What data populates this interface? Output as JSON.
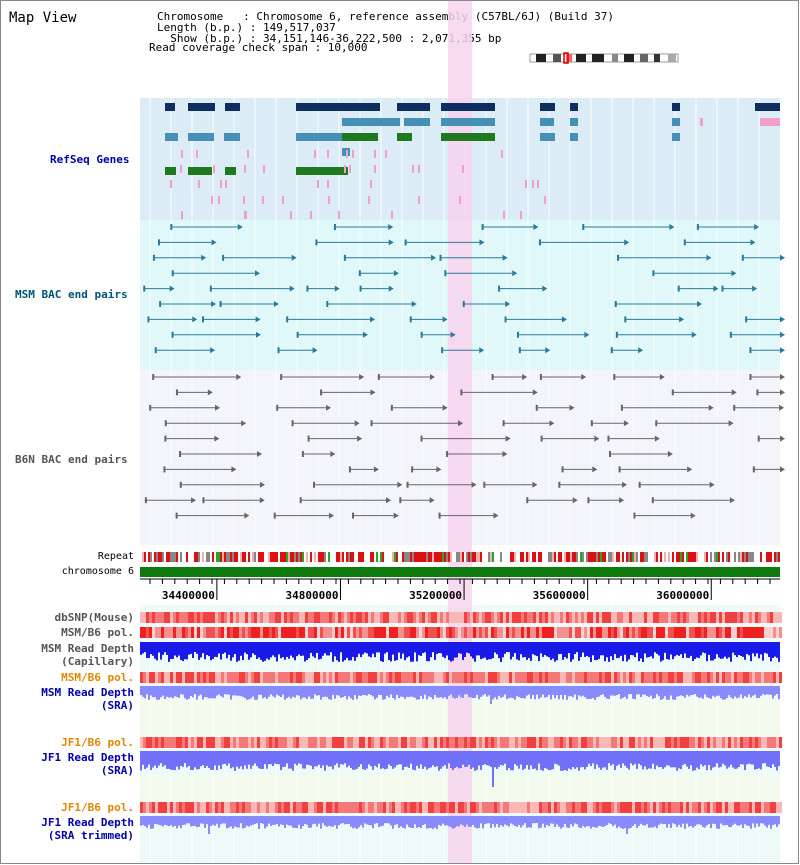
{
  "page": {
    "title": "Map View"
  },
  "header": {
    "chromosome_line": "Chromosome   : Chromosome 6, reference assembly (C57BL/6J) (Build 37)",
    "length_line": "Length (b.p.) : 149,517,037",
    "show_line": "  Show (b.p.) : 34,151,146-36,222,500 : 2,071,355 bp",
    "coverage_line": "Read coverage check span : 10,000"
  },
  "tracks": {
    "refseq": "RefSeq Genes",
    "msm_bac": "MSM BAC end pairs",
    "b6n_bac": "B6N BAC end pairs",
    "repeat": "Repeat",
    "chromosome": "chromosome 6",
    "dbsnp": "dbSNP(Mouse)",
    "msm_b6_pol_1": "MSM/B6 pol.",
    "msm_read_depth_cap_1": "MSM Read Depth",
    "msm_read_depth_cap_2": "(Capillary)",
    "msm_b6_pol_2": "MSM/B6 pol.",
    "msm_read_depth_sra_1": "MSM Read Depth",
    "msm_read_depth_sra_2": "(SRA)",
    "jf1_b6_pol_1": "JF1/B6 pol.",
    "jf1_read_depth_sra_1": "JF1 Read Depth",
    "jf1_read_depth_sra_2": "(SRA)",
    "jf1_b6_pol_2": "JF1/B6 pol.",
    "jf1_read_depth_trim_1": "JF1 Read Depth",
    "jf1_read_depth_trim_2": "(SRA trimmed)"
  },
  "axis": {
    "ticks": [
      "34400000",
      "34800000",
      "35200000",
      "35600000",
      "36000000"
    ]
  },
  "colors": {
    "refseq_bg": "#dcecf7",
    "msm_bg": "#e1f8fa",
    "gene_dark": "#0d2e5e",
    "gene_mid": "#4690b8",
    "gene_green": "#1f7a1f",
    "gene_pink": "#f2a0c8",
    "highlight": "#f7d3ee",
    "chromosome_bar": "#0e7a0e",
    "depth_dark": "#0000ee",
    "depth_light": "#8888ff",
    "label_blue": "#0000aa",
    "label_orange": "#e08800",
    "label_teal": "#005577"
  }
}
